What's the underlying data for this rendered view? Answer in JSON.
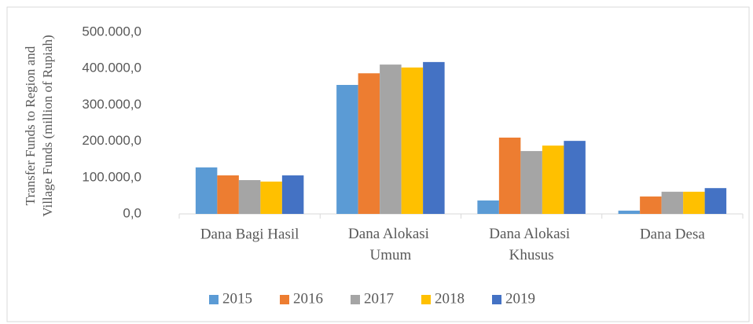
{
  "chart_data": {
    "type": "bar",
    "ylabel": [
      "Transfer Funds to Region and",
      "Village Funds  (million of Rupiah)"
    ],
    "categories": [
      "Dana Bagi Hasil",
      "Dana Alokasi Umum",
      "Dana Alokasi Khusus",
      "Dana Desa"
    ],
    "series": [
      {
        "name": "2015",
        "color": "#5b9bd5",
        "values": [
          128000,
          355000,
          37000,
          9000
        ]
      },
      {
        "name": "2016",
        "color": "#ed7d31",
        "values": [
          106000,
          387000,
          210000,
          48000
        ]
      },
      {
        "name": "2017",
        "color": "#a5a5a5",
        "values": [
          93000,
          411000,
          173000,
          61000
        ]
      },
      {
        "name": "2018",
        "color": "#ffc000",
        "values": [
          89000,
          403000,
          188000,
          61000
        ]
      },
      {
        "name": "2019",
        "color": "#4472c4",
        "values": [
          106000,
          418000,
          201000,
          71000
        ]
      }
    ],
    "ylim": [
      0,
      500000
    ],
    "yticks": [
      {
        "value": 0,
        "label": "0,0"
      },
      {
        "value": 100000,
        "label": "100.000,0"
      },
      {
        "value": 200000,
        "label": "200.000,0"
      },
      {
        "value": 300000,
        "label": "300.000,0"
      },
      {
        "value": 400000,
        "label": "400.000,0"
      },
      {
        "value": 500000,
        "label": "500.000,0"
      }
    ],
    "grid": false,
    "legend": "bottom"
  }
}
